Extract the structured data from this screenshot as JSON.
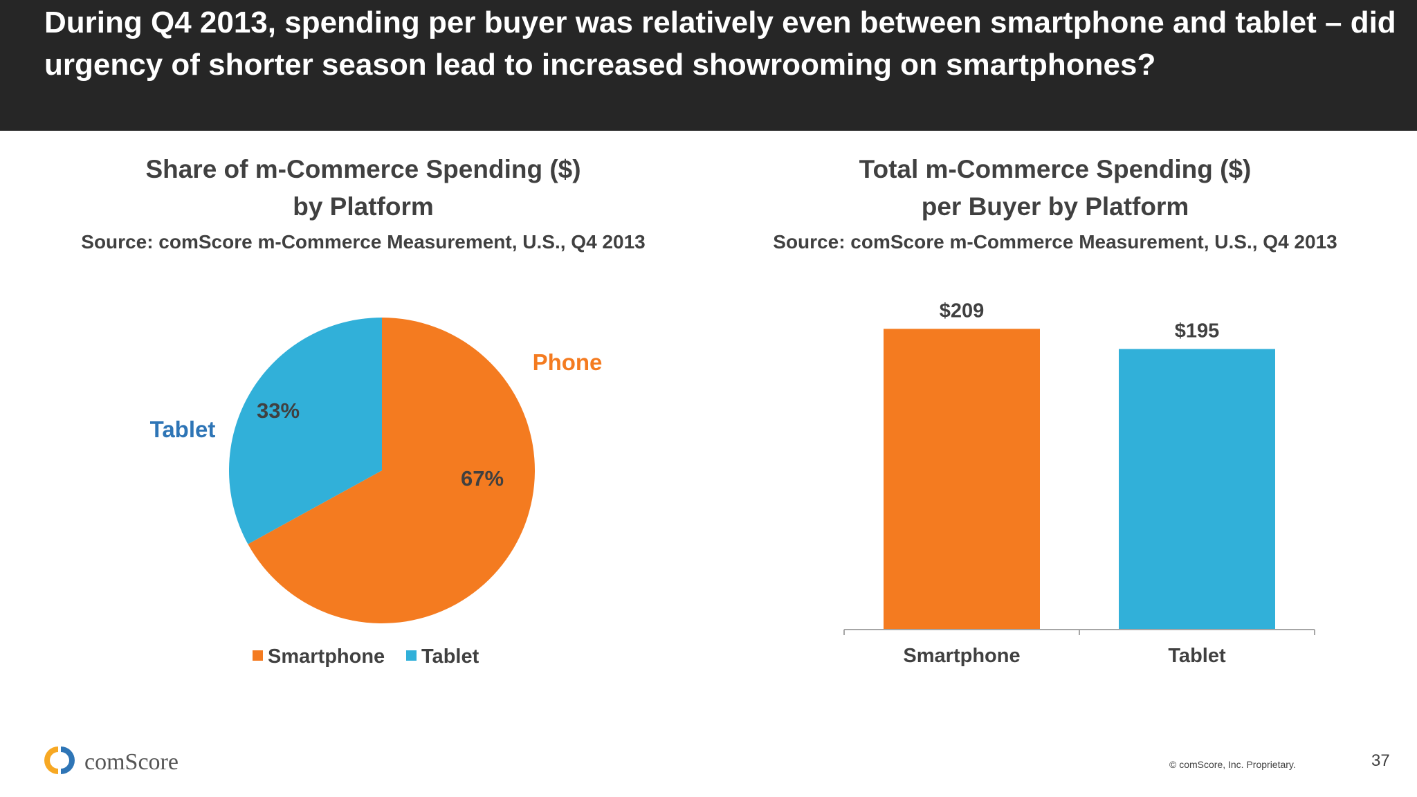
{
  "slide": {
    "title": "During Q4 2013, spending per buyer was relatively even between smartphone and tablet – did urgency of shorter season lead to increased showrooming on smartphones?",
    "page_number": "37",
    "copyright": "© comScore, Inc. Proprietary.",
    "logo_text": "comScore"
  },
  "colors": {
    "smartphone": "#F47B20",
    "tablet": "#31B0D9",
    "header_bg": "#262626",
    "text": "#404040",
    "tablet_label": "#2E75B6"
  },
  "chart_data": [
    {
      "type": "pie",
      "title": "Share of m-Commerce Spending ($)",
      "title_line2": "by Platform",
      "subtitle": "Source: comScore m-Commerce Measurement, U.S., Q4 2013",
      "categories": [
        "Smartphone",
        "Tablet"
      ],
      "values": [
        67,
        33
      ],
      "data_labels": [
        "67%",
        "33%"
      ],
      "callouts": [
        "Phone",
        "Tablet"
      ],
      "legend": [
        "Smartphone",
        "Tablet"
      ],
      "legend_position": "bottom"
    },
    {
      "type": "bar",
      "title": "Total m-Commerce Spending ($)",
      "title_line2": "per Buyer by Platform",
      "subtitle": "Source: comScore m-Commerce Measurement, U.S., Q4 2013",
      "categories": [
        "Smartphone",
        "Tablet"
      ],
      "values": [
        209,
        195
      ],
      "data_labels": [
        "$209",
        "$195"
      ],
      "ylim": [
        0,
        250
      ],
      "grid": false
    }
  ]
}
